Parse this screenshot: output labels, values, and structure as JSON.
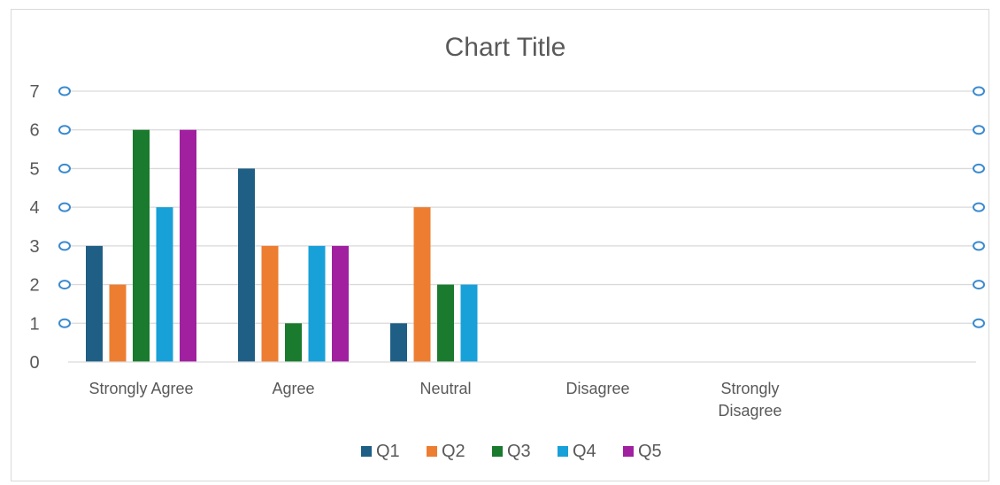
{
  "chart_data": {
    "type": "bar",
    "title": "Chart Title",
    "xlabel": "",
    "ylabel": "",
    "categories": [
      "Strongly Agree",
      "Agree",
      "Neutral",
      "Disagree",
      "Strongly Disagree"
    ],
    "category_lines": [
      [
        "Strongly Agree"
      ],
      [
        "Agree"
      ],
      [
        "Neutral"
      ],
      [
        "Disagree"
      ],
      [
        "Strongly",
        "Disagree"
      ]
    ],
    "series": [
      {
        "name": "Q1",
        "color": "#1f5f85",
        "values": [
          3,
          5,
          1,
          0,
          0
        ]
      },
      {
        "name": "Q2",
        "color": "#ed7d31",
        "values": [
          2,
          3,
          4,
          0,
          0
        ]
      },
      {
        "name": "Q3",
        "color": "#1a7a2e",
        "values": [
          6,
          1,
          2,
          0,
          0
        ]
      },
      {
        "name": "Q4",
        "color": "#18a0d8",
        "values": [
          4,
          3,
          2,
          0,
          0
        ]
      },
      {
        "name": "Q5",
        "color": "#a020a0",
        "values": [
          6,
          3,
          0,
          0,
          0
        ]
      }
    ],
    "ylim": [
      0,
      7
    ],
    "yticks": [
      "0",
      "1",
      "2",
      "3",
      "4",
      "5",
      "6",
      "7"
    ],
    "grid": true,
    "legend": "bottom",
    "selection_handles": true
  }
}
